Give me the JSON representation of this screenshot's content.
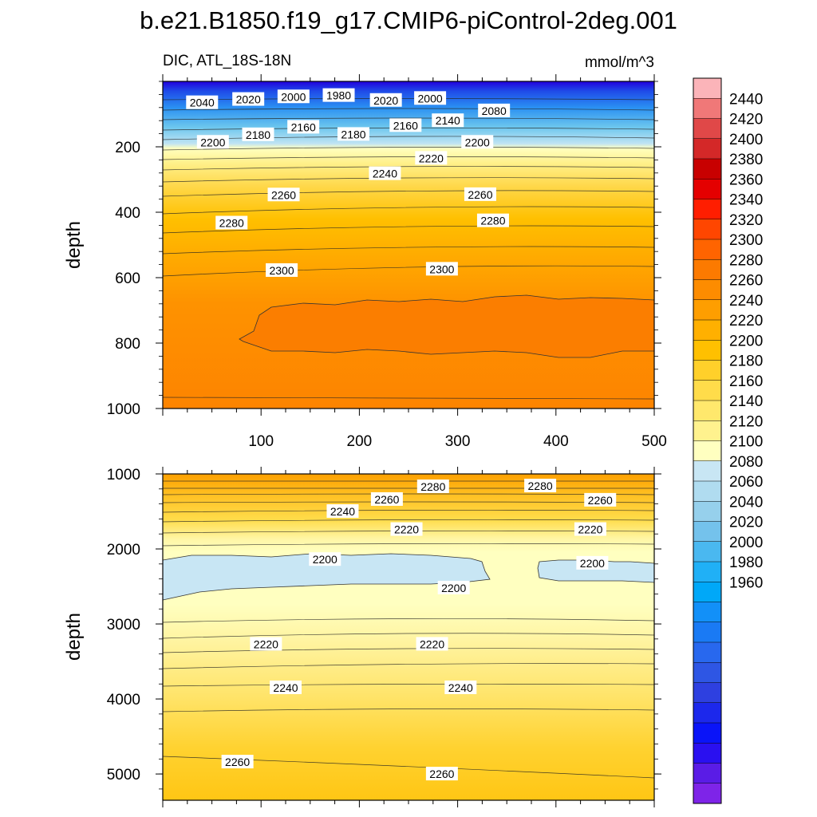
{
  "figure": {
    "title": "b.e21.B1850.f19_g17.CMIP6-piControl-2deg.001",
    "left_string": "DIC, ATL_18S-18N",
    "right_string": "mmol/m^3",
    "ylabel": "depth"
  },
  "chart_data": [
    {
      "type": "heatmap",
      "panel": "upper",
      "title": "b.e21.B1850.f19_g17.CMIP6-piControl-2deg.001",
      "xlabel": "",
      "ylabel": "depth",
      "xlim": [
        0,
        500
      ],
      "ylim": [
        1000,
        0
      ],
      "x_ticks": [
        100,
        200,
        300,
        400,
        500
      ],
      "y_ticks": [
        200,
        400,
        600,
        800,
        1000
      ],
      "contour_labels": [
        {
          "x": 40,
          "y": 65,
          "value": 2040
        },
        {
          "x": 87,
          "y": 55,
          "value": 2020
        },
        {
          "x": 133,
          "y": 47,
          "value": 2000
        },
        {
          "x": 179,
          "y": 43,
          "value": 1980
        },
        {
          "x": 227,
          "y": 58,
          "value": 2020
        },
        {
          "x": 272,
          "y": 52,
          "value": 2000
        },
        {
          "x": 337,
          "y": 90,
          "value": 2080
        },
        {
          "x": 290,
          "y": 120,
          "value": 2140
        },
        {
          "x": 247,
          "y": 135,
          "value": 2160
        },
        {
          "x": 143,
          "y": 140,
          "value": 2160
        },
        {
          "x": 194,
          "y": 162,
          "value": 2180
        },
        {
          "x": 97,
          "y": 163,
          "value": 2180
        },
        {
          "x": 51,
          "y": 186,
          "value": 2200
        },
        {
          "x": 320,
          "y": 186,
          "value": 2200
        },
        {
          "x": 273,
          "y": 235,
          "value": 2220
        },
        {
          "x": 226,
          "y": 282,
          "value": 2240
        },
        {
          "x": 123,
          "y": 347,
          "value": 2260
        },
        {
          "x": 323,
          "y": 346,
          "value": 2260
        },
        {
          "x": 70,
          "y": 433,
          "value": 2280
        },
        {
          "x": 336,
          "y": 426,
          "value": 2280
        },
        {
          "x": 121,
          "y": 578,
          "value": 2300
        },
        {
          "x": 284,
          "y": 574,
          "value": 2300
        }
      ]
    },
    {
      "type": "heatmap",
      "panel": "lower",
      "xlabel": "",
      "ylabel": "depth",
      "xlim": [
        0,
        500
      ],
      "ylim": [
        5350,
        1000
      ],
      "y_ticks": [
        1000,
        2000,
        3000,
        4000,
        5000
      ],
      "contour_labels": [
        {
          "x": 275,
          "y": 1170,
          "value": 2280
        },
        {
          "x": 384,
          "y": 1160,
          "value": 2280
        },
        {
          "x": 228,
          "y": 1340,
          "value": 2260
        },
        {
          "x": 445,
          "y": 1350,
          "value": 2260
        },
        {
          "x": 183,
          "y": 1500,
          "value": 2240
        },
        {
          "x": 248,
          "y": 1740,
          "value": 2220
        },
        {
          "x": 435,
          "y": 1740,
          "value": 2220
        },
        {
          "x": 165,
          "y": 2140,
          "value": 2200
        },
        {
          "x": 437,
          "y": 2190,
          "value": 2200
        },
        {
          "x": 296,
          "y": 2520,
          "value": 2200
        },
        {
          "x": 105,
          "y": 3270,
          "value": 2220
        },
        {
          "x": 274,
          "y": 3270,
          "value": 2220
        },
        {
          "x": 125,
          "y": 3850,
          "value": 2240
        },
        {
          "x": 303,
          "y": 3850,
          "value": 2240
        },
        {
          "x": 76,
          "y": 4840,
          "value": 2260
        },
        {
          "x": 284,
          "y": 5000,
          "value": 2260
        }
      ]
    }
  ],
  "colorbar": {
    "labels": [
      "2440",
      "2420",
      "2400",
      "2380",
      "2360",
      "2340",
      "2320",
      "2300",
      "2280",
      "2260",
      "2240",
      "2220",
      "2200",
      "2180",
      "2160",
      "2140",
      "2120",
      "2100",
      "2080",
      "2060",
      "2040",
      "2020",
      "2000",
      "1980",
      "1960"
    ],
    "colors": [
      "#fbb4b9",
      "#f07878",
      "#e04848",
      "#d42828",
      "#c80000",
      "#e40000",
      "#ff1e00",
      "#ff4600",
      "#ff6400",
      "#fc7a00",
      "#fd8c00",
      "#fe9e00",
      "#ffb000",
      "#ffc000",
      "#ffd02a",
      "#ffdc4a",
      "#ffe86c",
      "#fff28e",
      "#ffffc0",
      "#c8e6f4",
      "#b0dcf0",
      "#96d0ec",
      "#74c2ec",
      "#4ab8f0",
      "#20b0f6",
      "#00a8f8",
      "#1290f8",
      "#1a7af4",
      "#2868ee",
      "#2e56e4",
      "#2e40e0",
      "#1c28ec",
      "#0a14f8",
      "#2a10f0",
      "#5a1ce6",
      "#7e24e8"
    ]
  },
  "colors": {
    "upper_deep": "#fe8600",
    "upper_core": "#fb7800",
    "lower_surface": "#ffb000",
    "blue_lens": "#c8e6f4",
    "pale_band": "#ffffc0",
    "contour_line": "#222222"
  }
}
